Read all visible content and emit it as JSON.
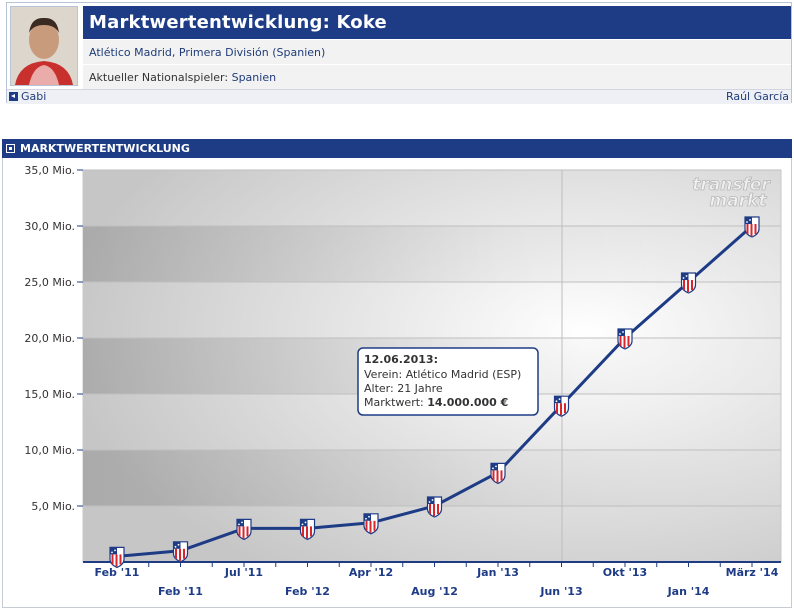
{
  "header": {
    "title": "Marktwertentwicklung: Koke",
    "club_line": "Atlético Madrid, Primera División (Spanien)",
    "national_label": "Aktueller Nationalspieler:",
    "national_value": "Spanien",
    "prev_player": "Gabi",
    "next_player": "Raúl García"
  },
  "section": {
    "title": "MARKTWERTENTWICKLUNG"
  },
  "chart_data": {
    "type": "line",
    "yticks": [
      "35,0 Mio.",
      "30,0 Mio.",
      "25,0 Mio.",
      "20,0 Mio.",
      "15,0 Mio.",
      "10,0 Mio.",
      "5,0 Mio."
    ],
    "ylim": [
      0,
      35
    ],
    "xlabels_row1": [
      "Feb '11",
      "Jul '11",
      "Apr '12",
      "Jan '13",
      "Okt '13",
      "März '14"
    ],
    "xlabels_row2": [
      "Feb '11",
      "Feb '12",
      "Aug '12",
      "Jun '13",
      "Jan '14"
    ],
    "series": [
      {
        "values": [
          0.5,
          1.0,
          3.0,
          3.0,
          3.5,
          5.0,
          8.0,
          14.0,
          20.0,
          25.0,
          30.0
        ],
        "color": "#1e3b86"
      }
    ],
    "tooltip": {
      "date": "12.06.2013:",
      "line1": "Verein: Atlético Madrid (ESP)",
      "line2": "Alter: 21 Jahre",
      "value_label": "Marktwert:",
      "value": "14.000.000 €"
    },
    "watermark": [
      "transfer",
      "markt"
    ]
  }
}
